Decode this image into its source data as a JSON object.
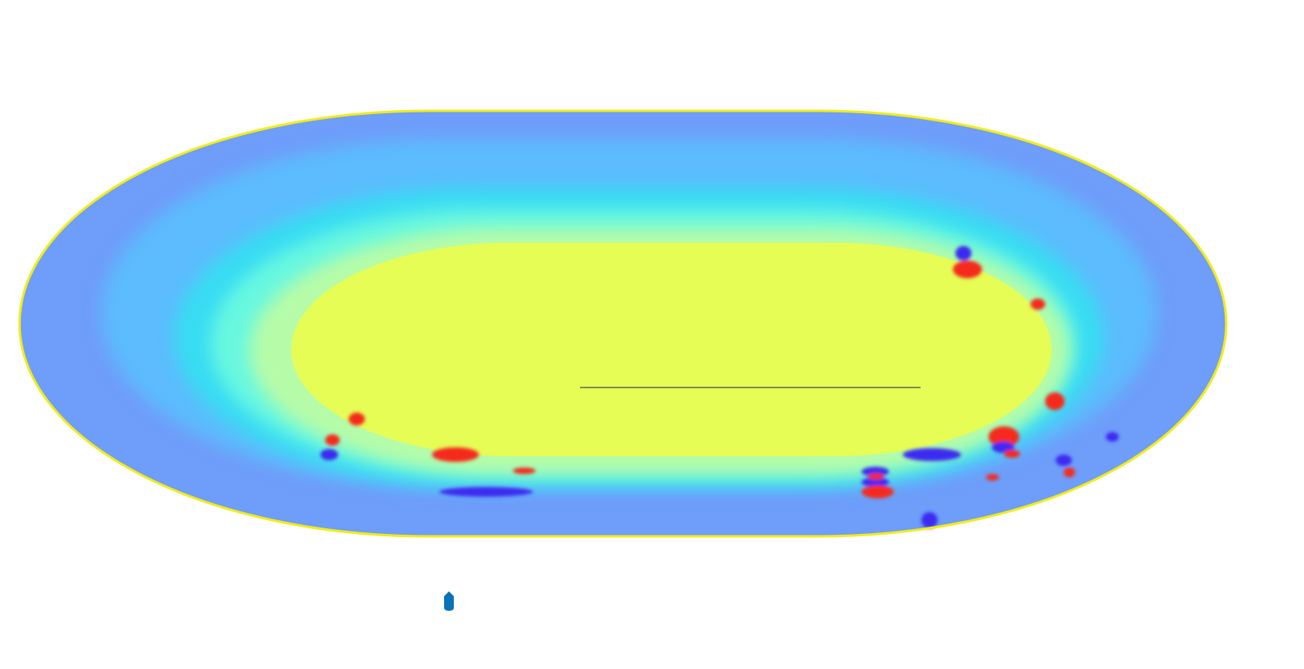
{
  "figure": {
    "kind": "stadium-shaped false-color field map with nested contour outlines",
    "colors": {
      "background": "#ffffff",
      "field_outer": "#6e9dfa",
      "field_band_2": "#5cbcfd",
      "field_band_3": "#38dcf3",
      "field_band_4": "#67f8e0",
      "field_band_5": "#b6fca8",
      "field_core": "#e6fd55",
      "boundary_outer": "#f2ec19",
      "contour_1": "#f39a12",
      "contour_2": "#f05a1a",
      "contour_3": "#ee1616",
      "hot_spot": "#f52a1c",
      "cold_spot": "#3c2cf0",
      "center_line": "#4a4a4a",
      "marker": "#0a72b8"
    },
    "contours": [
      {
        "name": "outer-boundary",
        "color_key": "boundary_outer"
      },
      {
        "name": "contour-1",
        "color_key": "contour_1"
      },
      {
        "name": "contour-2",
        "color_key": "contour_2"
      },
      {
        "name": "contour-3",
        "color_key": "contour_3"
      }
    ],
    "marker_icon": "marker-pin-icon"
  }
}
